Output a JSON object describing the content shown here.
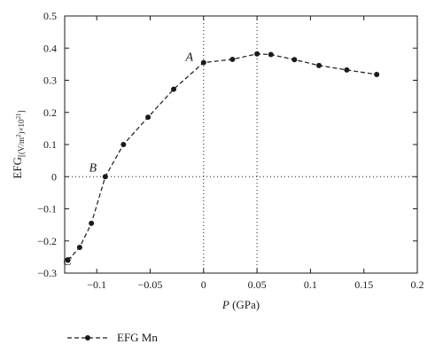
{
  "chart_data": {
    "type": "line",
    "xlabel_var": "P",
    "xlabel_unit": " (GPa)",
    "ylabel_main": "EFG",
    "ylabel_sub": "[(V/m",
    "ylabel_sup1": "2",
    "ylabel_mid": ")×10",
    "ylabel_sup2": "21",
    "ylabel_end": "]",
    "xlim": [
      -0.13,
      0.2
    ],
    "ylim": [
      -0.3,
      0.5
    ],
    "xticks": [
      -0.1,
      -0.05,
      0,
      0.05,
      0.1,
      0.15,
      0.2
    ],
    "xtick_labels": [
      "−0.1",
      "−0.05",
      "0",
      "0.05",
      "0.1",
      "0.15",
      "0.2"
    ],
    "yticks": [
      -0.3,
      -0.2,
      -0.1,
      0,
      0.1,
      0.2,
      0.3,
      0.4,
      0.5
    ],
    "ytick_labels": [
      "−0.3",
      "−0.2",
      "−0.1",
      "0",
      "0.1",
      "0.2",
      "0.3",
      "0.4",
      "0.5"
    ],
    "reference_lines": {
      "x": [
        0,
        0.05
      ],
      "y": [
        0
      ]
    },
    "series": [
      {
        "name": "EFG Mn",
        "color": "#1a1a1a",
        "style": "dashed",
        "marker": "circle",
        "x": [
          -0.127,
          -0.116,
          -0.105,
          -0.092,
          -0.075,
          -0.052,
          -0.028,
          0.0,
          0.027,
          0.05,
          0.063,
          0.085,
          0.108,
          0.134,
          0.162
        ],
        "y": [
          -0.26,
          -0.22,
          -0.145,
          0.0,
          0.1,
          0.185,
          0.272,
          0.355,
          0.365,
          0.382,
          0.38,
          0.364,
          0.346,
          0.332,
          0.318
        ]
      }
    ],
    "annotations": [
      {
        "text": "A",
        "x": 0.0,
        "y": 0.355
      },
      {
        "text": "B",
        "x": -0.092,
        "y": 0.0
      },
      {
        "text": "C",
        "x": -0.116,
        "y": -0.22
      }
    ],
    "legend": {
      "position": "bottom-left"
    }
  }
}
